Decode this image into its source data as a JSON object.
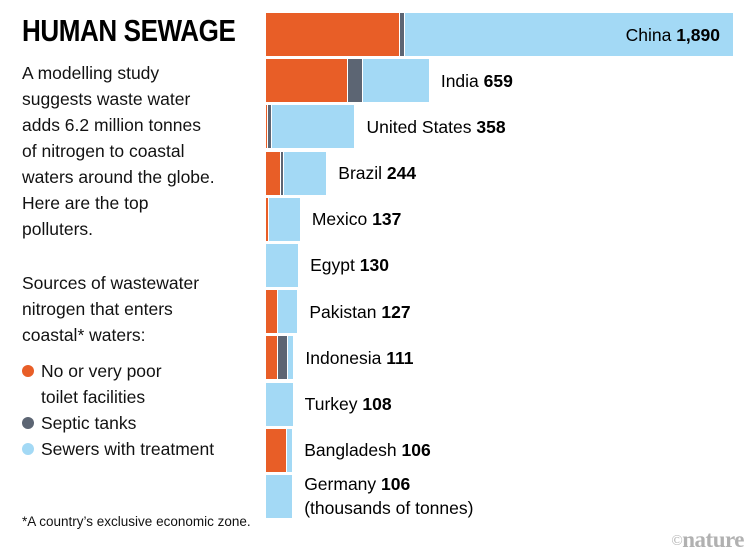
{
  "header": {
    "title": "HUMAN SEWAGE"
  },
  "intro_text": "A modelling study\nsuggests waste water\nadds 6.2 million tonnes\nof nitrogen to coastal\nwaters around the globe.\nHere are the top\npolluters.",
  "sources_text": "Sources of wastewater\nnitrogen that enters\ncoastal* waters:",
  "legend": {
    "items": [
      {
        "label": "No or very poor\ntoilet facilities",
        "color": "#E85E27"
      },
      {
        "label": "Septic tanks",
        "color": "#5C6573"
      },
      {
        "label": "Sewers with treatment",
        "color": "#A3D9F5"
      }
    ]
  },
  "footnote": "*A country’s exclusive economic zone.",
  "watermark": {
    "copyright": "©",
    "brand": "nature"
  },
  "chart_data": {
    "type": "bar",
    "orientation": "horizontal",
    "stacked": true,
    "title": "HUMAN SEWAGE",
    "unit_note": "(thousands of tonnes)",
    "xlim": [
      0,
      1890
    ],
    "grid": false,
    "legend_position": "left",
    "series_names": [
      "No or very poor toilet facilities",
      "Septic tanks",
      "Sewers with treatment"
    ],
    "colors": [
      "#E85E27",
      "#5C6573",
      "#A3D9F5"
    ],
    "rows": [
      {
        "country": "China",
        "total": 1890,
        "total_label": "1,890",
        "segments": [
          540,
          15,
          1335
        ],
        "label_inside": true
      },
      {
        "country": "India",
        "total": 659,
        "total_label": "659",
        "segments": [
          330,
          60,
          269
        ]
      },
      {
        "country": "United States",
        "total": 358,
        "total_label": "358",
        "segments": [
          5,
          10,
          343
        ]
      },
      {
        "country": "Brazil",
        "total": 244,
        "total_label": "244",
        "segments": [
          60,
          8,
          176
        ]
      },
      {
        "country": "Mexico",
        "total": 137,
        "total_label": "137",
        "segments": [
          8,
          0,
          129
        ]
      },
      {
        "country": "Egypt",
        "total": 130,
        "total_label": "130",
        "segments": [
          0,
          0,
          130
        ]
      },
      {
        "country": "Pakistan",
        "total": 127,
        "total_label": "127",
        "segments": [
          45,
          0,
          82
        ]
      },
      {
        "country": "Indonesia",
        "total": 111,
        "total_label": "111",
        "segments": [
          48,
          40,
          23
        ]
      },
      {
        "country": "Turkey",
        "total": 108,
        "total_label": "108",
        "segments": [
          0,
          0,
          108
        ]
      },
      {
        "country": "Bangladesh",
        "total": 106,
        "total_label": "106",
        "segments": [
          85,
          0,
          21
        ]
      },
      {
        "country": "Germany",
        "total": 106,
        "total_label": "106",
        "segments": [
          0,
          0,
          106
        ],
        "sublabel": "(thousands of tonnes)"
      }
    ]
  }
}
